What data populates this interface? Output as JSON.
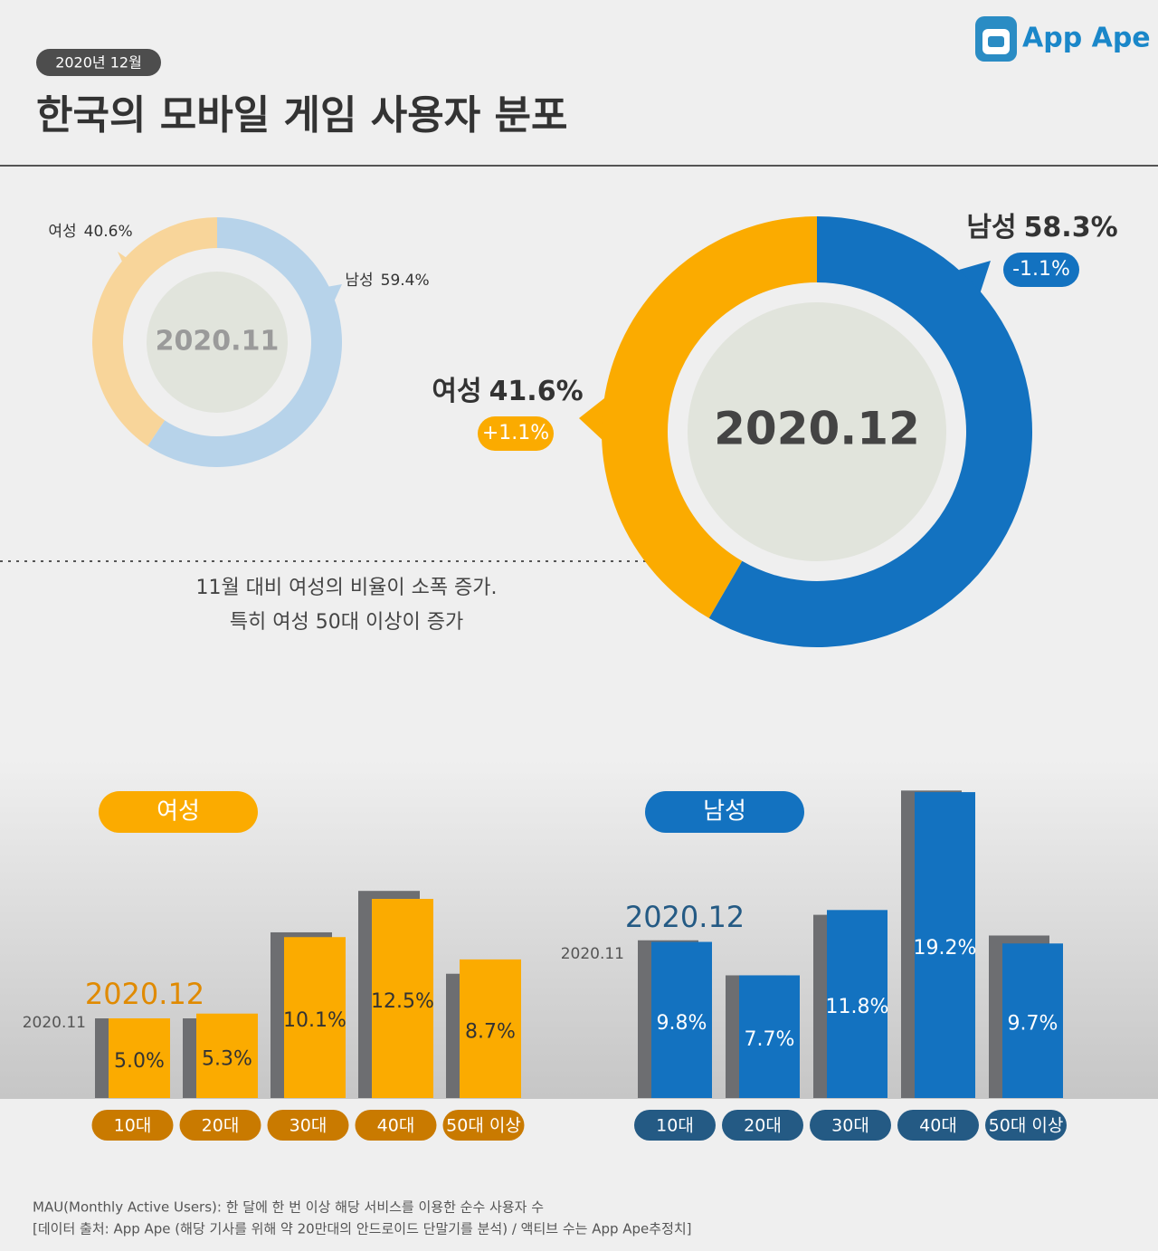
{
  "header": {
    "badge": "2020년 12월",
    "title": "한국의 모바일 게임 사용자 분포",
    "logo": "App Ape"
  },
  "note": [
    "11월 대비 여성의 비율이 소폭 증가.",
    "특히 여성 50대 이상이 증가"
  ],
  "footer": [
    "MAU(Monthly Active Users):  한 달에 한 번 이상 해당 서비스를 이용한 순수 사용자 수",
    "[데이터 출처: App Ape (해당 기사를 위해 약 20만대의 안드로이드 단말기를 분석) / 액티브 수는 App Ape추정치]"
  ],
  "chart_data": [
    {
      "type": "donut",
      "title": "2020.11",
      "categories": [
        "남성",
        "여성"
      ],
      "values": [
        59.4,
        40.6
      ],
      "value_labels": [
        "59.4%",
        "40.6%"
      ],
      "colors": [
        "#b7d3ea",
        "#f8d59a"
      ]
    },
    {
      "type": "donut",
      "title": "2020.12",
      "categories": [
        "남성",
        "여성"
      ],
      "values": [
        58.3,
        41.6
      ],
      "value_labels": [
        "58.3%",
        "41.6%"
      ],
      "colors": [
        "#1372c0",
        "#fbab00"
      ],
      "changes": [
        {
          "value": -1.1,
          "label": "-1.1%"
        },
        {
          "value": 1.1,
          "label": "+1.1%"
        }
      ]
    },
    {
      "type": "bar",
      "title": "여성",
      "categories": [
        "10대",
        "20대",
        "30대",
        "40대",
        "50대 이상"
      ],
      "ylim": [
        0,
        20
      ],
      "series": [
        {
          "name": "2020.11",
          "color": "#6d6e71",
          "values": [
            5.0,
            5.0,
            10.4,
            13.0,
            7.8
          ]
        },
        {
          "name": "2020.12",
          "color": "#fbab00",
          "values": [
            5.0,
            5.3,
            10.1,
            12.5,
            8.7
          ],
          "value_labels": [
            "5.0%",
            "5.3%",
            "10.1%",
            "12.5%",
            "8.7%"
          ]
        }
      ]
    },
    {
      "type": "bar",
      "title": "남성",
      "categories": [
        "10대",
        "20대",
        "30대",
        "40대",
        "50대 이상"
      ],
      "ylim": [
        0,
        20
      ],
      "series": [
        {
          "name": "2020.11",
          "color": "#6d6e71",
          "values": [
            9.9,
            7.7,
            11.5,
            19.3,
            10.2
          ]
        },
        {
          "name": "2020.12",
          "color": "#1372c0",
          "values": [
            9.8,
            7.7,
            11.8,
            19.2,
            9.7
          ],
          "value_labels": [
            "9.8%",
            "7.7%",
            "11.8%",
            "19.2%",
            "9.7%"
          ]
        }
      ]
    }
  ]
}
